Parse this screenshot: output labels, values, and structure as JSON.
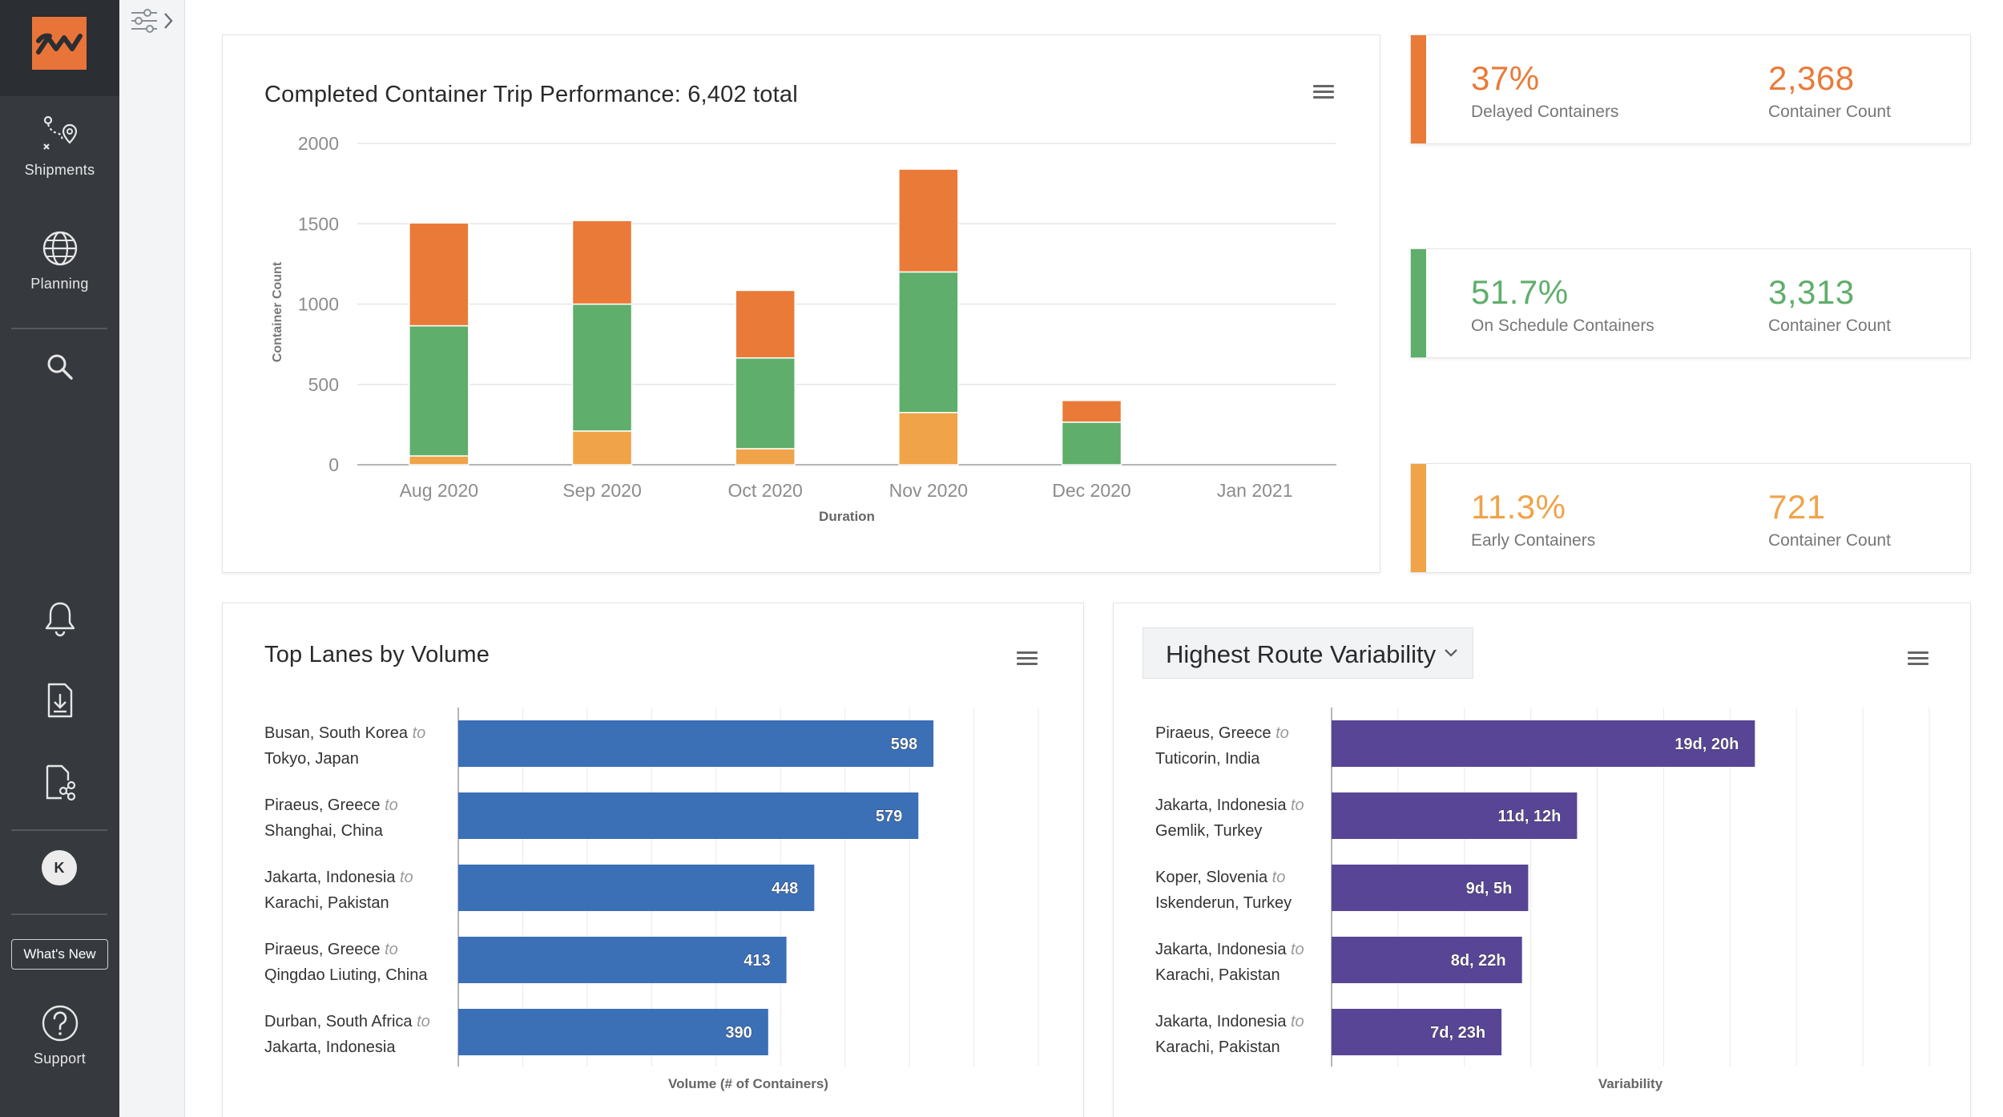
{
  "nav": {
    "items": [
      {
        "label": "Shipments",
        "icon": "route-pin-icon"
      },
      {
        "label": "Planning",
        "icon": "globe-icon"
      }
    ],
    "search_icon": "search-icon",
    "notifications_icon": "bell-icon",
    "download_icon": "download-icon",
    "share_icon": "document-share-icon",
    "avatar_initial": "K",
    "whats_new": "What's New",
    "support": "Support"
  },
  "colors": {
    "accent": "#e9743a",
    "delayed": "#ea7a38",
    "on_schedule": "#5fae6b",
    "early": "#f0a348",
    "lanes": "#3b6fb6",
    "variability": "#584595"
  },
  "trip_card": {
    "title": "Completed Container Trip Performance: 6,402 total"
  },
  "kpis": [
    {
      "percent": "37%",
      "label": "Delayed Containers",
      "count": "2,368",
      "count_label": "Container Count",
      "color": "#ea7a38"
    },
    {
      "percent": "51.7%",
      "label": "On Schedule Containers",
      "count": "3,313",
      "count_label": "Container Count",
      "color": "#5fae6b"
    },
    {
      "percent": "11.3%",
      "label": "Early Containers",
      "count": "721",
      "count_label": "Container Count",
      "color": "#f0a348"
    }
  ],
  "lanes_card": {
    "title": "Top Lanes by Volume"
  },
  "variability_card": {
    "dropdown_label": "Highest Route Variability"
  },
  "chart_data": [
    {
      "type": "bar",
      "stacked": true,
      "title": "Completed Container Trip Performance: 6,402 total",
      "xlabel": "Duration",
      "ylabel": "Container Count",
      "ylim": [
        0,
        2000
      ],
      "yticks": [
        0,
        500,
        1000,
        1500,
        2000
      ],
      "categories": [
        "Aug 2020",
        "Sep 2020",
        "Oct 2020",
        "Nov 2020",
        "Dec 2020",
        "Jan 2021"
      ],
      "series": [
        {
          "name": "Early",
          "color": "#f0a348",
          "values": [
            55,
            210,
            100,
            325,
            0,
            0
          ]
        },
        {
          "name": "On Schedule",
          "color": "#5fae6b",
          "values": [
            810,
            790,
            565,
            875,
            265,
            0
          ]
        },
        {
          "name": "Delayed",
          "color": "#ea7a38",
          "values": [
            640,
            520,
            420,
            640,
            135,
            0
          ]
        }
      ]
    },
    {
      "type": "bar",
      "orientation": "horizontal",
      "title": "Top Lanes by Volume",
      "xlabel": "Volume (# of Containers)",
      "xlim": [
        0,
        730
      ],
      "rows": [
        {
          "origin": "Busan, South Korea",
          "destination": "Tokyo, Japan",
          "value": 598,
          "label": "598"
        },
        {
          "origin": "Piraeus, Greece",
          "destination": "Shanghai, China",
          "value": 579,
          "label": "579"
        },
        {
          "origin": "Jakarta, Indonesia",
          "destination": "Karachi, Pakistan",
          "value": 448,
          "label": "448"
        },
        {
          "origin": "Piraeus, Greece",
          "destination": "Qingdao Liuting, China",
          "value": 413,
          "label": "413"
        },
        {
          "origin": "Durban, South Africa",
          "destination": "Jakarta, Indonesia",
          "value": 390,
          "label": "390"
        }
      ],
      "connector": "to"
    },
    {
      "type": "bar",
      "orientation": "horizontal",
      "title": "Highest Route Variability",
      "xlabel": "Variability",
      "xlim": [
        0,
        28
      ],
      "rows": [
        {
          "origin": "Piraeus, Greece",
          "destination": "Tuticorin, India",
          "value": 19.83,
          "label": "19d, 20h"
        },
        {
          "origin": "Jakarta, Indonesia",
          "destination": "Gemlik, Turkey",
          "value": 11.5,
          "label": "11d, 12h"
        },
        {
          "origin": "Koper, Slovenia",
          "destination": "Iskenderun, Turkey",
          "value": 9.21,
          "label": "9d, 5h"
        },
        {
          "origin": "Jakarta, Indonesia",
          "destination": "Karachi, Pakistan",
          "value": 8.92,
          "label": "8d, 22h"
        },
        {
          "origin": "Jakarta, Indonesia",
          "destination": "Karachi, Pakistan",
          "value": 7.96,
          "label": "7d, 23h"
        }
      ],
      "connector": "to"
    }
  ]
}
